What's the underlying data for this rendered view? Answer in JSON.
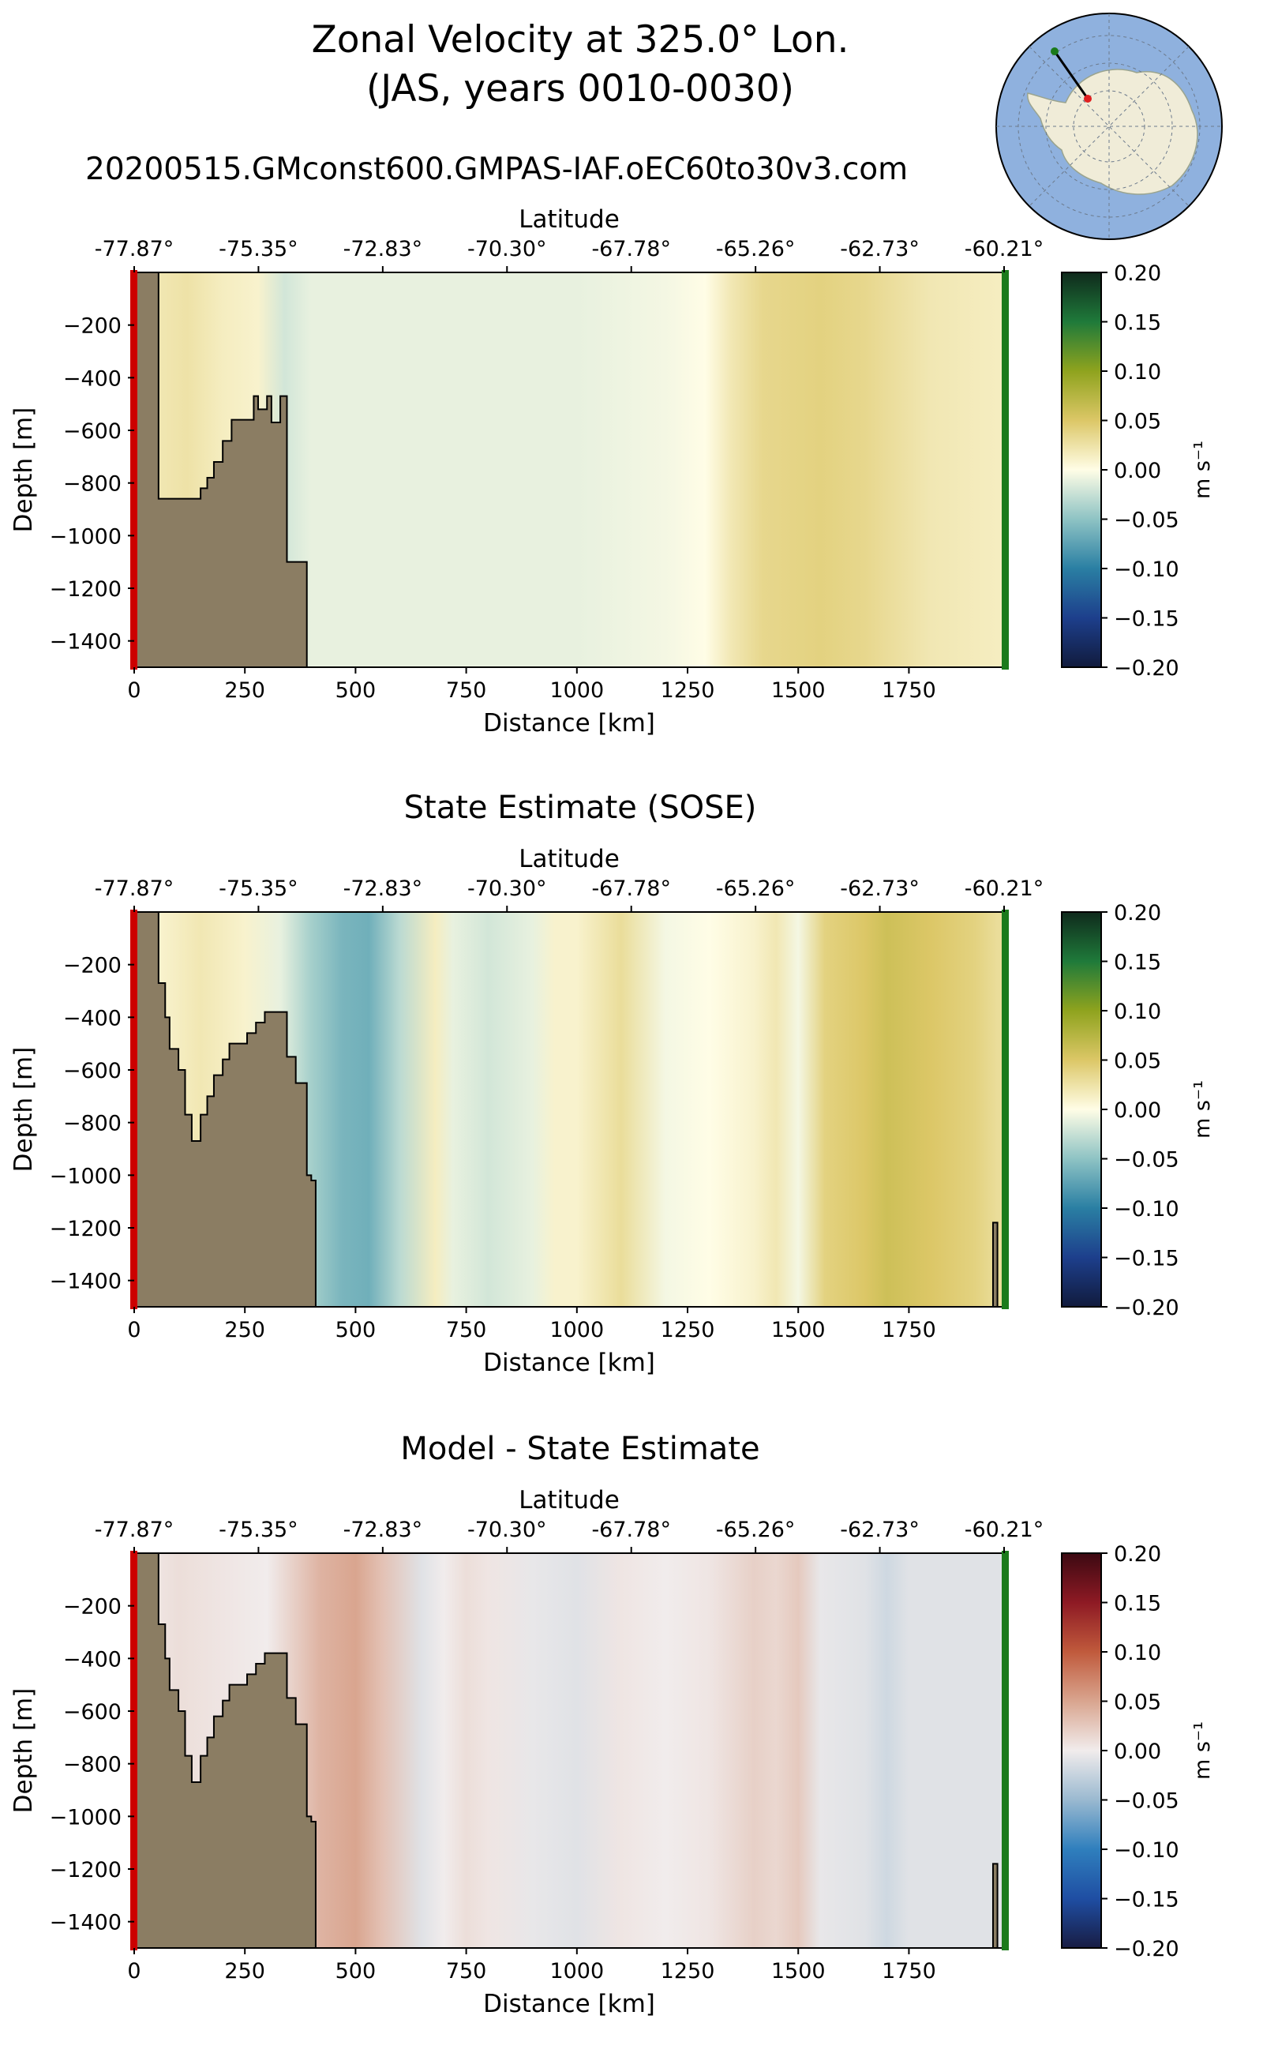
{
  "title": {
    "line1": "Zonal Velocity at 325.0° Lon.",
    "line2": "(JAS, years 0010-0030)",
    "run": "20200515.GMconst600.GMPAS-IAF.oEC60to30v3.com"
  },
  "colors": {
    "bathymetry": "#8b7d63",
    "start_marker": "#cc0000",
    "end_marker": "#1b7a1b",
    "ocean_inset": "#8fb1de",
    "land_inset": "#f0ecd8"
  },
  "chart_data": [
    {
      "type": "heatmap",
      "title": "",
      "xlabel": "Distance [km]",
      "ylabel": "Depth [m]",
      "x2label": "Latitude",
      "xlim": [
        0,
        1965
      ],
      "ylim": [
        -1500,
        0
      ],
      "xticks": [
        0,
        250,
        500,
        750,
        1000,
        1250,
        1500,
        1750
      ],
      "yticks": [
        -200,
        -400,
        -600,
        -800,
        -1000,
        -1200,
        -1400
      ],
      "lat_ticks": [
        "-77.87°",
        "-75.35°",
        "-72.83°",
        "-70.30°",
        "-67.78°",
        "-65.26°",
        "-62.73°",
        "-60.21°"
      ],
      "colorbar": {
        "label": "m s⁻¹",
        "min": -0.2,
        "max": 0.2,
        "ticks": [
          "0.20",
          "0.15",
          "0.10",
          "0.05",
          "0.00",
          "−0.05",
          "−0.10",
          "−0.15",
          "−0.20"
        ],
        "cmap": "delta"
      },
      "velocity_profile": {
        "distance_km": [
          0,
          50,
          120,
          200,
          280,
          340,
          400,
          500,
          650,
          800,
          1000,
          1200,
          1290,
          1350,
          1420,
          1550,
          1650,
          1800,
          1950
        ],
        "value_ms": [
          0.0,
          0.02,
          0.025,
          0.015,
          0.01,
          -0.02,
          -0.01,
          -0.01,
          -0.01,
          -0.01,
          -0.01,
          -0.005,
          0.0,
          0.02,
          0.035,
          0.04,
          0.035,
          0.02,
          0.015
        ]
      },
      "bathymetry": {
        "distance_km": [
          55,
          55,
          150,
          150,
          165,
          165,
          180,
          180,
          200,
          200,
          220,
          220,
          230,
          230,
          270,
          270,
          280,
          280,
          300,
          300,
          310,
          310,
          330,
          330,
          345,
          345,
          365,
          365,
          390,
          390
        ],
        "depth_m": [
          0,
          -860,
          -860,
          -820,
          -820,
          -780,
          -780,
          -720,
          -720,
          -640,
          -640,
          -560,
          -560,
          -560,
          -560,
          -470,
          -470,
          -520,
          -520,
          -470,
          -470,
          -570,
          -570,
          -470,
          -470,
          -1100,
          -1100,
          -1100,
          -1100,
          -1500
        ]
      }
    },
    {
      "type": "heatmap",
      "title": "State Estimate (SOSE)",
      "xlabel": "Distance [km]",
      "ylabel": "Depth [m]",
      "x2label": "Latitude",
      "xlim": [
        0,
        1965
      ],
      "ylim": [
        -1500,
        0
      ],
      "xticks": [
        0,
        250,
        500,
        750,
        1000,
        1250,
        1500,
        1750
      ],
      "yticks": [
        -200,
        -400,
        -600,
        -800,
        -1000,
        -1200,
        -1400
      ],
      "lat_ticks": [
        "-77.87°",
        "-75.35°",
        "-72.83°",
        "-70.30°",
        "-67.78°",
        "-65.26°",
        "-62.73°",
        "-60.21°"
      ],
      "colorbar": {
        "label": "m s⁻¹",
        "min": -0.2,
        "max": 0.2,
        "ticks": [
          "0.20",
          "0.15",
          "0.10",
          "0.05",
          "0.00",
          "−0.05",
          "−0.10",
          "−0.15",
          "−0.20"
        ],
        "cmap": "delta"
      },
      "velocity_profile": {
        "distance_km": [
          0,
          60,
          150,
          250,
          330,
          400,
          470,
          530,
          600,
          680,
          720,
          800,
          900,
          950,
          1000,
          1100,
          1200,
          1300,
          1400,
          1450,
          1500,
          1560,
          1650,
          1700,
          1800,
          1900,
          1950
        ],
        "value_ms": [
          0.0,
          0.01,
          0.02,
          0.01,
          -0.01,
          -0.04,
          -0.06,
          -0.065,
          -0.03,
          0.015,
          -0.01,
          -0.02,
          -0.01,
          0.01,
          0.01,
          0.03,
          -0.005,
          0.0,
          0.01,
          0.02,
          -0.005,
          0.04,
          0.05,
          0.06,
          0.05,
          0.04,
          0.03
        ]
      },
      "bathymetry": {
        "distance_km": [
          55,
          55,
          70,
          70,
          80,
          80,
          100,
          100,
          115,
          115,
          130,
          130,
          150,
          150,
          165,
          165,
          180,
          180,
          200,
          200,
          215,
          215,
          230,
          230,
          255,
          255,
          275,
          275,
          295,
          295,
          335,
          335,
          345,
          345,
          365,
          365,
          390,
          390,
          400,
          400,
          410,
          410
        ],
        "depth_m": [
          0,
          -270,
          -270,
          -400,
          -400,
          -520,
          -520,
          -600,
          -600,
          -770,
          -770,
          -870,
          -870,
          -770,
          -770,
          -700,
          -700,
          -620,
          -620,
          -560,
          -560,
          -500,
          -500,
          -500,
          -500,
          -460,
          -460,
          -420,
          -420,
          -380,
          -380,
          -380,
          -380,
          -550,
          -550,
          -650,
          -650,
          -1000,
          -1000,
          -1020,
          -1020,
          -1500
        ]
      },
      "bathymetry_right": {
        "distance_km": [
          1940,
          1940,
          1950,
          1950
        ],
        "depth_m": [
          -1500,
          -1180,
          -1180,
          -1500
        ]
      }
    },
    {
      "type": "heatmap",
      "title": "Model - State Estimate",
      "xlabel": "Distance [km]",
      "ylabel": "Depth [m]",
      "x2label": "Latitude",
      "xlim": [
        0,
        1965
      ],
      "ylim": [
        -1500,
        0
      ],
      "xticks": [
        0,
        250,
        500,
        750,
        1000,
        1250,
        1500,
        1750
      ],
      "yticks": [
        -200,
        -400,
        -600,
        -800,
        -1000,
        -1200,
        -1400
      ],
      "lat_ticks": [
        "-77.87°",
        "-75.35°",
        "-72.83°",
        "-70.30°",
        "-67.78°",
        "-65.26°",
        "-62.73°",
        "-60.21°"
      ],
      "colorbar": {
        "label": "m s⁻¹",
        "min": -0.2,
        "max": 0.2,
        "ticks": [
          "0.20",
          "0.15",
          "0.10",
          "0.05",
          "0.00",
          "−0.05",
          "−0.10",
          "−0.15",
          "−0.20"
        ],
        "cmap": "balance"
      },
      "velocity_profile": {
        "distance_km": [
          0,
          100,
          200,
          300,
          420,
          500,
          560,
          650,
          700,
          750,
          800,
          900,
          1000,
          1100,
          1200,
          1300,
          1400,
          1450,
          1500,
          1550,
          1650,
          1700,
          1750,
          1850,
          1950
        ],
        "value_ms": [
          0.0,
          0.01,
          0.005,
          0.0,
          0.04,
          0.05,
          0.03,
          -0.01,
          0.0,
          0.01,
          0.005,
          -0.005,
          -0.01,
          0.005,
          0.0,
          0.005,
          0.02,
          0.015,
          0.025,
          -0.005,
          -0.01,
          -0.02,
          -0.01,
          -0.01,
          -0.01
        ]
      },
      "bathymetry": {
        "distance_km": [
          55,
          55,
          70,
          70,
          80,
          80,
          100,
          100,
          115,
          115,
          130,
          130,
          150,
          150,
          165,
          165,
          180,
          180,
          200,
          200,
          215,
          215,
          230,
          230,
          255,
          255,
          275,
          275,
          295,
          295,
          335,
          335,
          345,
          345,
          365,
          365,
          390,
          390,
          400,
          400,
          410,
          410
        ],
        "depth_m": [
          0,
          -270,
          -270,
          -400,
          -400,
          -520,
          -520,
          -600,
          -600,
          -770,
          -770,
          -870,
          -870,
          -770,
          -770,
          -700,
          -700,
          -620,
          -620,
          -560,
          -560,
          -500,
          -500,
          -500,
          -500,
          -460,
          -460,
          -420,
          -420,
          -380,
          -380,
          -380,
          -380,
          -550,
          -550,
          -650,
          -650,
          -1000,
          -1000,
          -1020,
          -1020,
          -1500
        ]
      },
      "bathymetry_right": {
        "distance_km": [
          1940,
          1940,
          1950,
          1950
        ],
        "depth_m": [
          -1500,
          -1180,
          -1180,
          -1500
        ]
      }
    }
  ]
}
